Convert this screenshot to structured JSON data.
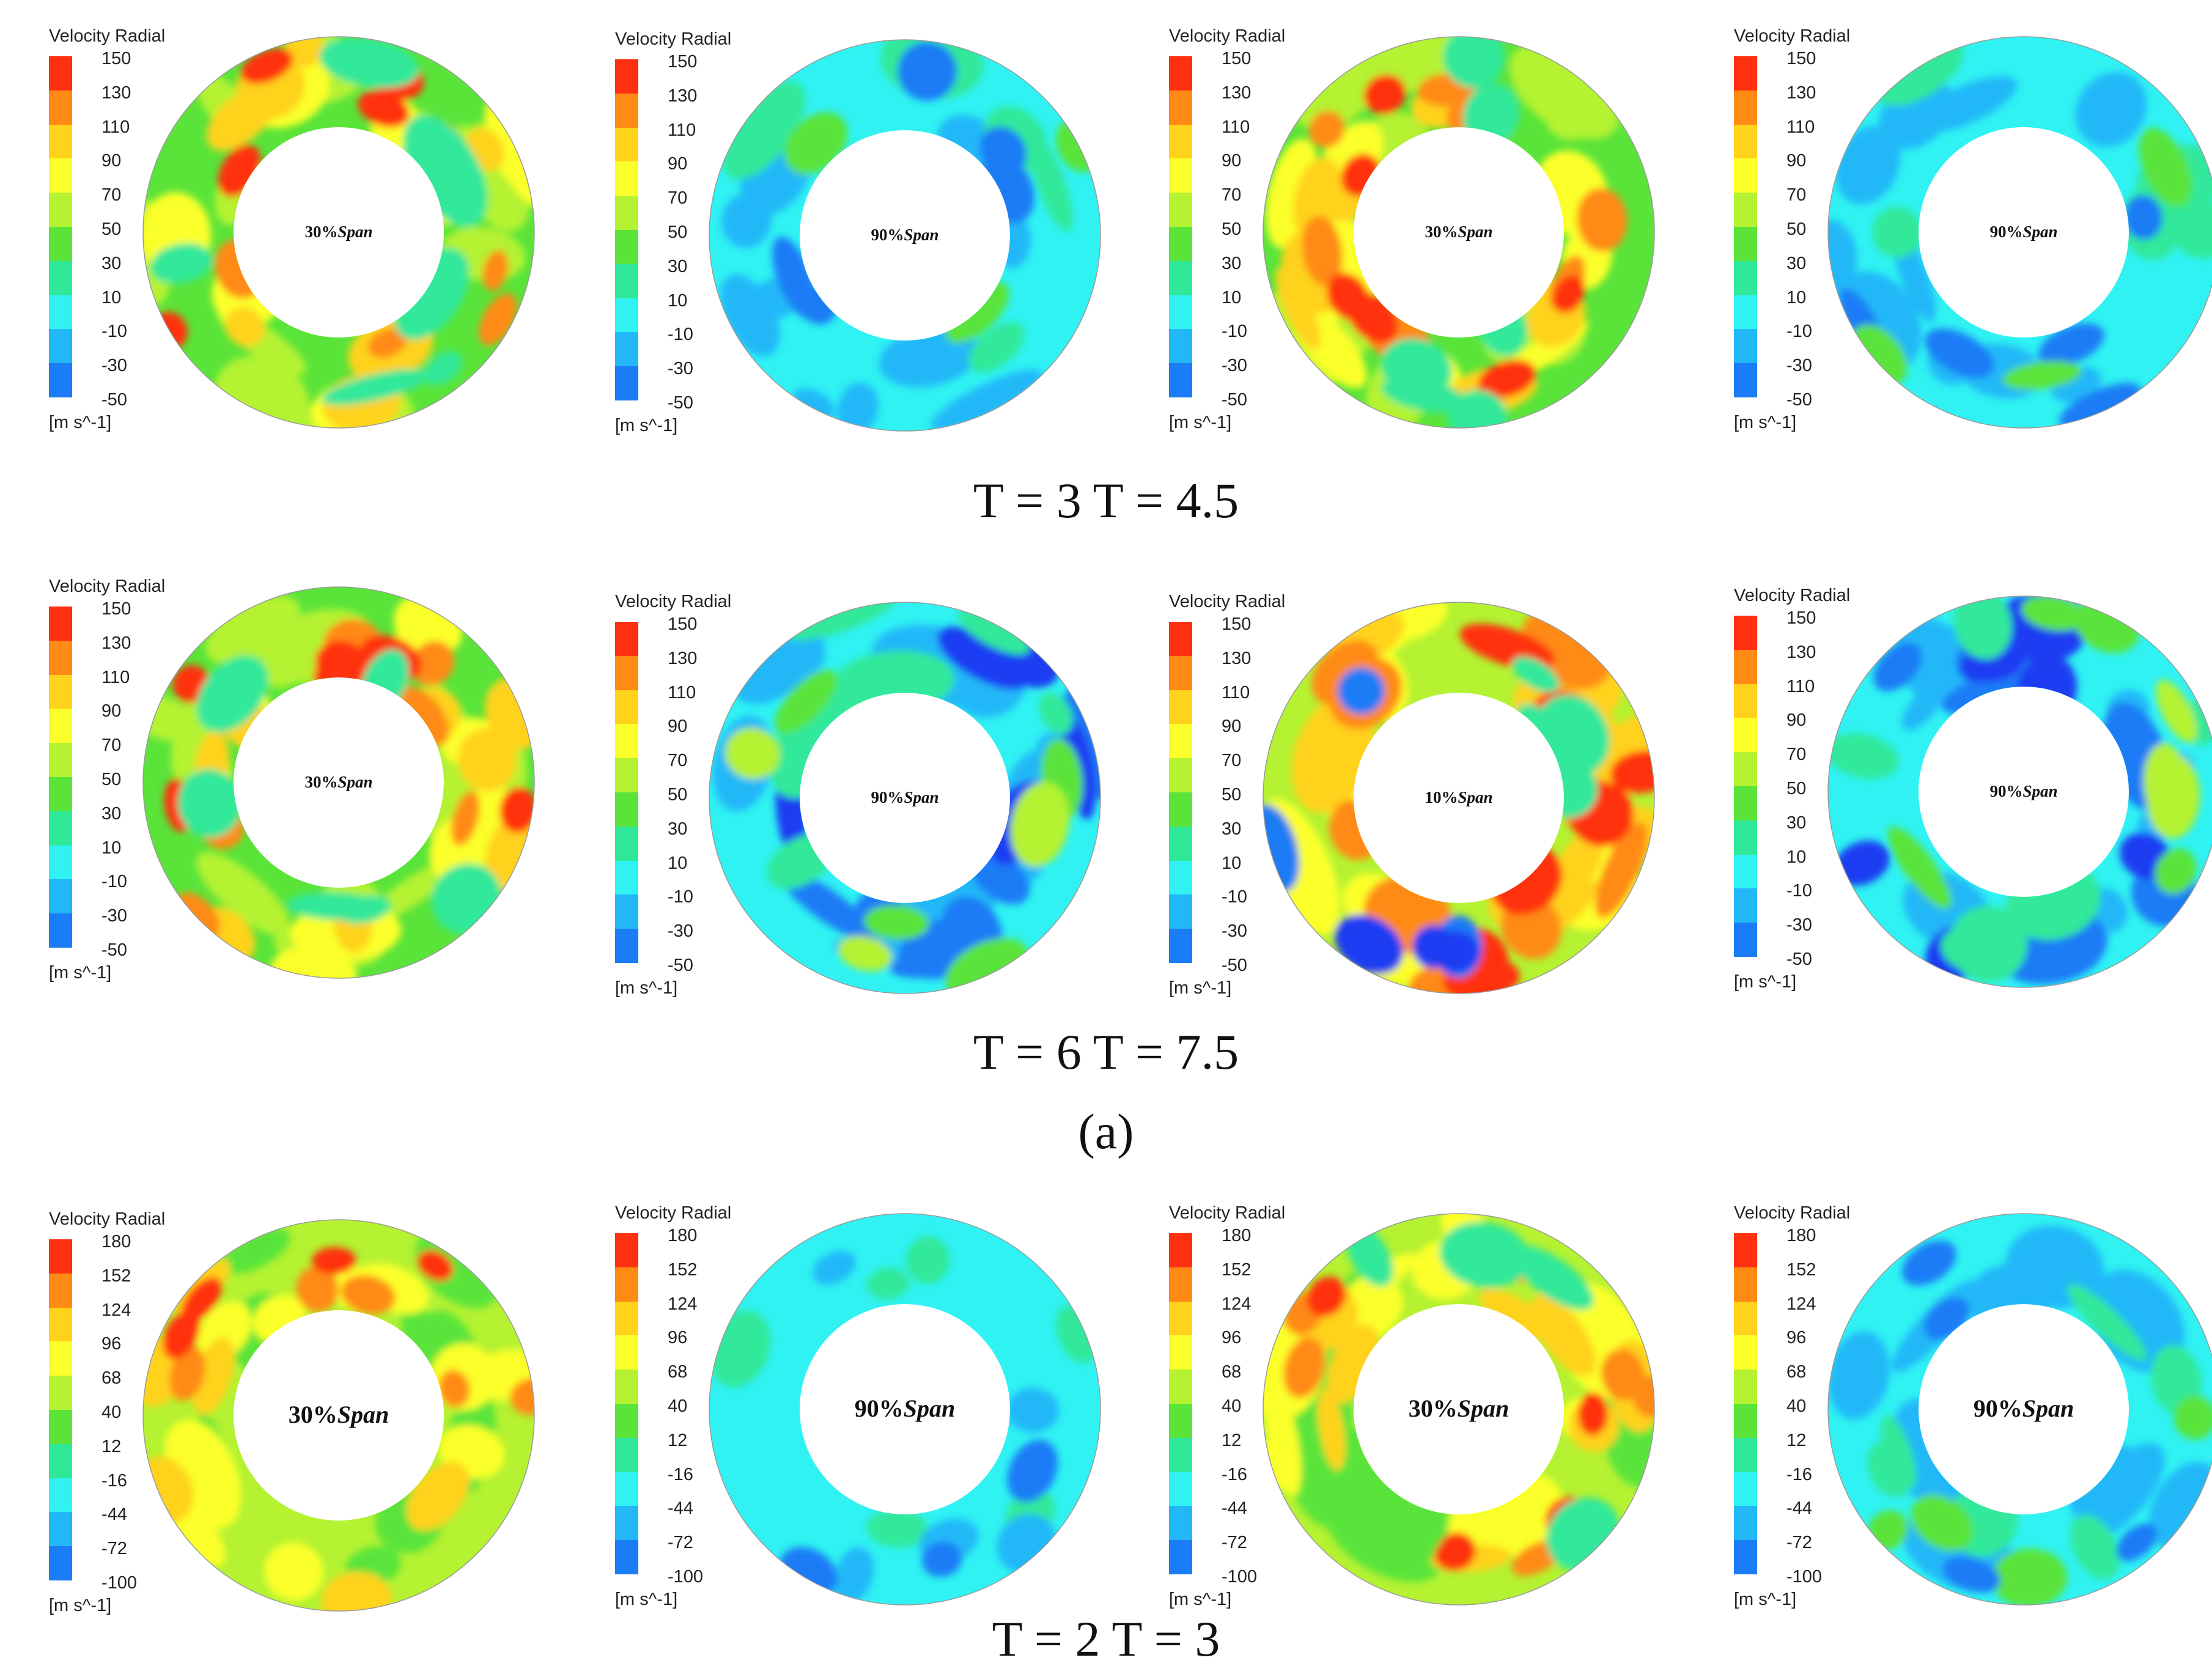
{
  "legend_title": "Velocity Radial",
  "unit": "[m s^-1]",
  "scale_a": [
    "150",
    "130",
    "110",
    "90",
    "70",
    "50",
    "30",
    "10",
    "-10",
    "-30",
    "-50"
  ],
  "scale_b": [
    "180",
    "152",
    "124",
    "96",
    "68",
    "40",
    "12",
    "-16",
    "-44",
    "-72",
    "-100"
  ],
  "colormap": [
    "#ff3010",
    "#ff8a14",
    "#ffd21c",
    "#fbff2a",
    "#b4f232",
    "#5ae43a",
    "#30e89a",
    "#30f2f2",
    "#22b8f8",
    "#1a7cf6",
    "#1a3cf2"
  ],
  "caption_1": "T = 3 T = 4.5",
  "caption_2": "T = 6 T = 7.5",
  "caption_3": "(a)",
  "caption_4": "T = 2 T = 3",
  "panels": [
    {
      "label_pct": "30%",
      "label_span": "Span",
      "scale": "a",
      "field": "moderate"
    },
    {
      "label_pct": "90%",
      "label_span": "Span",
      "scale": "a",
      "field": "low"
    },
    {
      "label_pct": "30%",
      "label_span": "Span",
      "scale": "a",
      "field": "moderate"
    },
    {
      "label_pct": "90%",
      "label_span": "Span",
      "scale": "a",
      "field": "low"
    },
    {
      "label_pct": "30%",
      "label_span": "Span",
      "scale": "a",
      "field": "moderate"
    },
    {
      "label_pct": "90%",
      "label_span": "Span",
      "scale": "a",
      "field": "low-blue"
    },
    {
      "label_pct": "10%",
      "label_span": "Span",
      "scale": "a",
      "field": "high"
    },
    {
      "label_pct": "90%",
      "label_span": "Span",
      "scale": "a",
      "field": "low-blue"
    },
    {
      "label_pct": "30%",
      "label_span": "Span",
      "scale": "b",
      "field": "moderate-b"
    },
    {
      "label_pct": "90%",
      "label_span": "Span",
      "scale": "b",
      "field": "cyan"
    },
    {
      "label_pct": "30%",
      "label_span": "Span",
      "scale": "b",
      "field": "moderate-b2"
    },
    {
      "label_pct": "90%",
      "label_span": "Span",
      "scale": "b",
      "field": "cyan-blue"
    }
  ]
}
